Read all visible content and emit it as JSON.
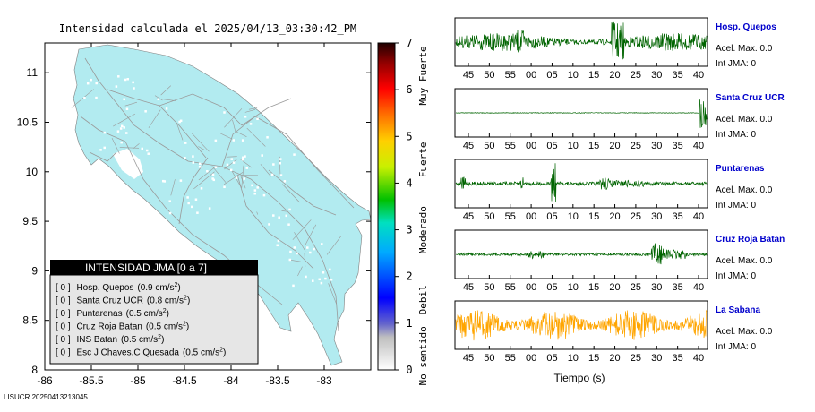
{
  "title": "Intensidad calculada el 2025/04/13_03:30:42_PM",
  "footer": "LISUCR 20250413213045",
  "colors": {
    "land": "#b2ebf0",
    "road": "#9a9a9a",
    "trace_green": "#006400",
    "trace_orange": "#ffa500",
    "station_label": "#0000cc",
    "legend_header_bg": "#000000",
    "legend_body_bg": "#e8e8e8"
  },
  "map": {
    "x_ticks": [
      "-86",
      "-85.5",
      "-85",
      "-84.5",
      "-84",
      "-83.5",
      "-83"
    ],
    "y_ticks": [
      "8",
      "8.5",
      "9",
      "9.5",
      "10",
      "10.5",
      "11"
    ],
    "xlim": [
      -86,
      -82.5
    ],
    "ylim": [
      8,
      11.3
    ]
  },
  "colorbar": {
    "ticks": [
      "0",
      "1",
      "2",
      "3",
      "4",
      "5",
      "6",
      "7"
    ],
    "labels": [
      "No sentido",
      "Debil",
      "Moderado",
      "Fuerte",
      "Muy Fuerte"
    ]
  },
  "legend": {
    "header": "INTENSIDAD JMA [0 a 7]",
    "items": [
      {
        "level": "[ 0 ]",
        "station": "Hosp. Quepos",
        "accel": "(0.9 cm/s",
        "sup": "2",
        "close": ")"
      },
      {
        "level": "[ 0 ]",
        "station": "Santa Cruz UCR",
        "accel": "(0.8 cm/s",
        "sup": "2",
        "close": ")"
      },
      {
        "level": "[ 0 ]",
        "station": "Puntarenas",
        "accel": "(0.5 cm/s",
        "sup": "2",
        "close": ")"
      },
      {
        "level": "[ 0 ]",
        "station": "Cruz Roja Batan",
        "accel": "(0.5 cm/s",
        "sup": "2",
        "close": ")"
      },
      {
        "level": "[ 0 ]",
        "station": "INS Batan",
        "accel": "(0.5 cm/s",
        "sup": "2",
        "close": ")"
      },
      {
        "level": "[ 0 ]",
        "station": "Esc J Chaves.C Quesada",
        "accel": "(0.5 cm/s",
        "sup": "2",
        "close": ")"
      }
    ]
  },
  "traces": {
    "x_ticks": [
      "45",
      "50",
      "55",
      "00",
      "05",
      "10",
      "15",
      "20",
      "25",
      "30",
      "35",
      "40"
    ],
    "xlabel": "Tiempo (s)",
    "stations": [
      {
        "name": "Hosp. Quepos",
        "accel": "Acel. Max. 0.0",
        "int": "Int JMA: 0",
        "color": "green",
        "style": "active"
      },
      {
        "name": "Santa Cruz UCR",
        "accel": "Acel. Max. 0.0",
        "int": "Int JMA: 0",
        "color": "green",
        "style": "flat_end"
      },
      {
        "name": "Puntarenas",
        "accel": "Acel. Max. 0.0",
        "int": "Int JMA: 0",
        "color": "green",
        "style": "spikes"
      },
      {
        "name": "Cruz Roja Batan",
        "accel": "Acel. Max. 0.0",
        "int": "Int JMA: 0",
        "color": "green",
        "style": "burst"
      },
      {
        "name": "La Sabana",
        "accel": "Acel. Max. 0.0",
        "int": "Int JMA: 0",
        "color": "orange",
        "style": "noisy"
      }
    ]
  },
  "chart_data": [
    {
      "type": "map",
      "title": "Intensidad calculada el 2025/04/13_03:30:42_PM",
      "xlim": [
        -86,
        -82.5
      ],
      "ylim": [
        8,
        11.3
      ],
      "x_ticks": [
        -86,
        -85.5,
        -85,
        -84.5,
        -84,
        -83.5,
        -83
      ],
      "y_ticks": [
        8,
        8.5,
        9,
        9.5,
        10,
        10.5,
        11
      ],
      "colorbar_range": [
        0,
        7
      ],
      "legend_placement": "bottom-left"
    },
    {
      "type": "line",
      "xlabel": "Tiempo (s)",
      "x_ticks": [
        "45",
        "50",
        "55",
        "00",
        "05",
        "10",
        "15",
        "20",
        "25",
        "30",
        "35",
        "40"
      ],
      "series": [
        {
          "name": "Hosp. Quepos",
          "peak_accel": 0.0,
          "jma": 0
        },
        {
          "name": "Santa Cruz UCR",
          "peak_accel": 0.0,
          "jma": 0
        },
        {
          "name": "Puntarenas",
          "peak_accel": 0.0,
          "jma": 0
        },
        {
          "name": "Cruz Roja Batan",
          "peak_accel": 0.0,
          "jma": 0
        },
        {
          "name": "La Sabana",
          "peak_accel": 0.0,
          "jma": 0
        }
      ]
    }
  ]
}
